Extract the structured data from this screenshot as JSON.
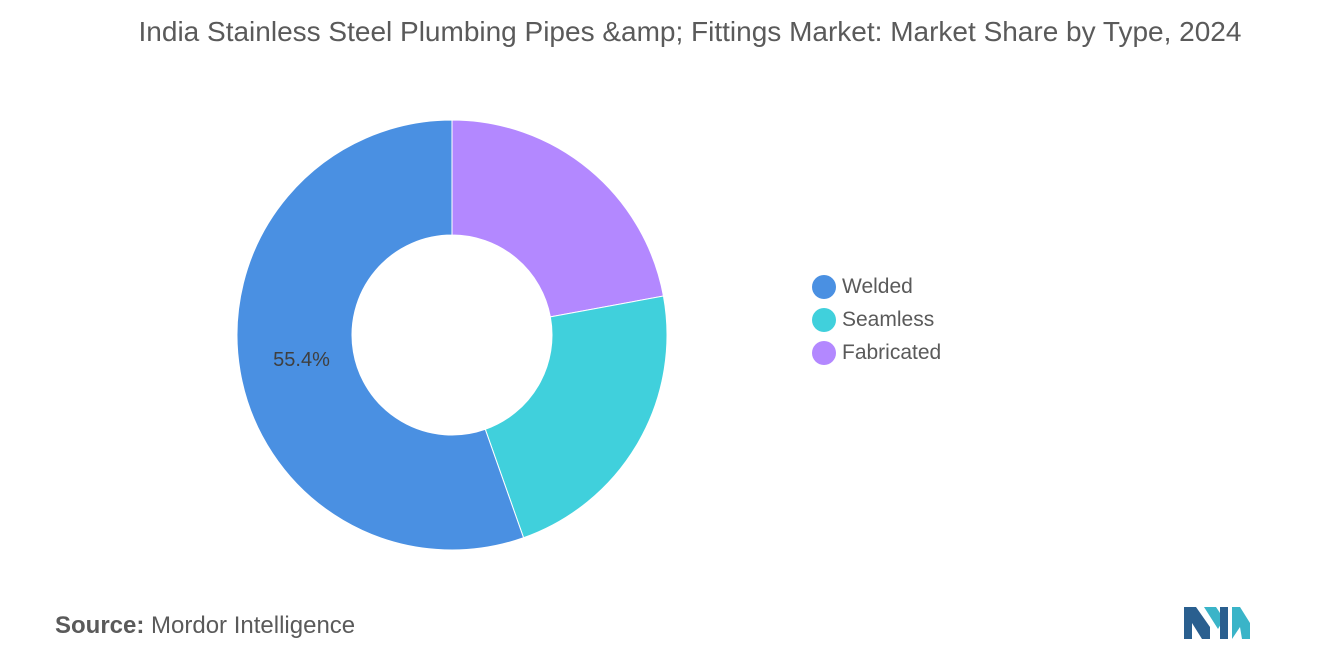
{
  "title": "India Stainless Steel Plumbing Pipes &amp; Fittings Market: Market Share by Type, 2024",
  "source": {
    "label": "Source:",
    "value": "Mordor Intelligence"
  },
  "chart_data": {
    "type": "pie",
    "donut": true,
    "title": "India Stainless Steel Plumbing Pipes &amp; Fittings Market: Market Share by Type, 2024",
    "categories": [
      "Welded",
      "Seamless",
      "Fabricated"
    ],
    "values": [
      55.4,
      22.5,
      22.1
    ],
    "colors": [
      "#4a90e2",
      "#40d0dc",
      "#b388ff"
    ],
    "data_labels": [
      "55.4%",
      "",
      ""
    ],
    "legend_position": "right"
  }
}
